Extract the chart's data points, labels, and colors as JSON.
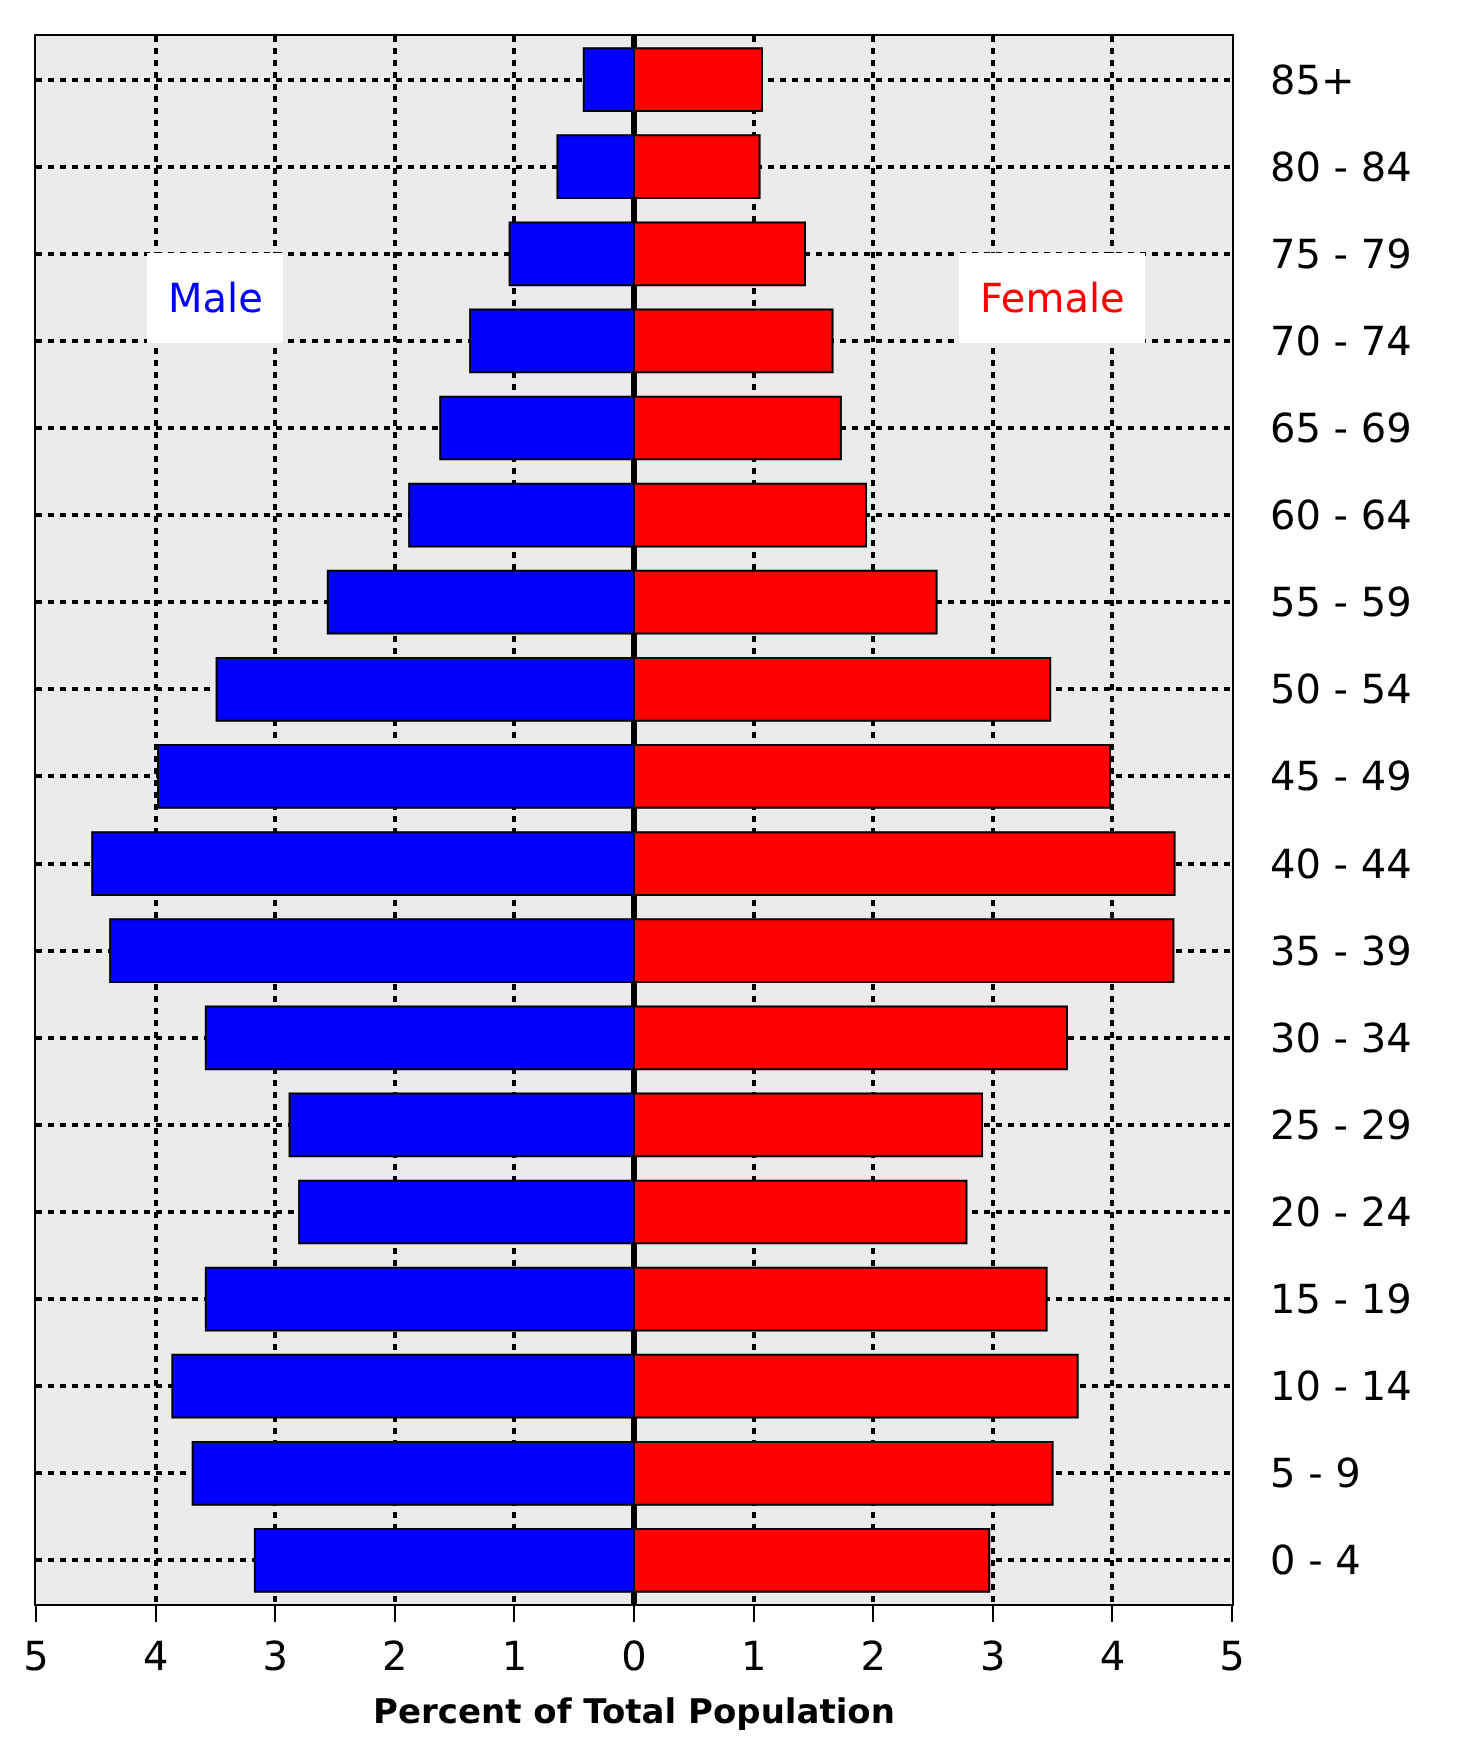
{
  "chart_data": {
    "type": "bar",
    "orientation": "horizontal",
    "xlabel": "Percent of Total Population",
    "categories": [
      "85+",
      "80 - 84",
      "75 - 79",
      "70 - 74",
      "65 - 69",
      "60 - 64",
      "55 - 59",
      "50 - 54",
      "45 - 49",
      "40 - 44",
      "35 - 39",
      "30 - 34",
      "25 - 29",
      "20 - 24",
      "15 - 19",
      "10 - 14",
      "5 - 9",
      "0 - 4"
    ],
    "series": [
      {
        "name": "Male",
        "color": "#0000ff",
        "values": [
          -0.42,
          -0.64,
          -1.04,
          -1.37,
          -1.62,
          -1.88,
          -2.56,
          -3.49,
          -3.98,
          -4.53,
          -4.38,
          -3.58,
          -2.88,
          -2.8,
          -3.58,
          -3.86,
          -3.69,
          -3.17
        ]
      },
      {
        "name": "Female",
        "color": "#ff0000",
        "values": [
          1.07,
          1.05,
          1.43,
          1.66,
          1.73,
          1.94,
          2.53,
          3.48,
          3.98,
          4.52,
          4.51,
          3.62,
          2.91,
          2.78,
          3.45,
          3.71,
          3.5,
          2.97
        ]
      }
    ],
    "xlim": [
      -5,
      5
    ],
    "xticks": [
      {
        "value": -5,
        "label": "5"
      },
      {
        "value": -4,
        "label": "4"
      },
      {
        "value": -3,
        "label": "3"
      },
      {
        "value": -2,
        "label": "2"
      },
      {
        "value": -1,
        "label": "1"
      },
      0,
      1,
      2,
      3,
      4,
      5
    ],
    "stacked": true,
    "grid": true,
    "legend": false,
    "line_style": "dotted"
  }
}
